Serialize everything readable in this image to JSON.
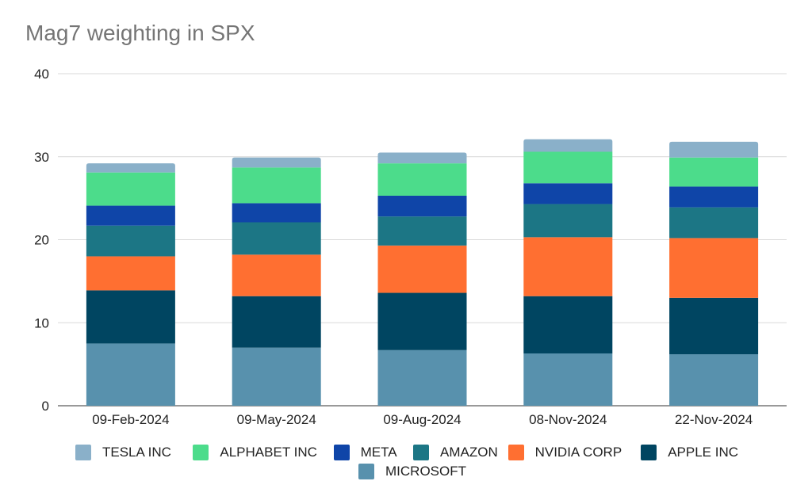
{
  "chart_data": {
    "type": "bar",
    "stacked": true,
    "title": "Mag7 weighting in SPX",
    "xlabel": "",
    "ylabel": "",
    "ylim": [
      0,
      40
    ],
    "yticks": [
      0,
      10,
      20,
      30,
      40
    ],
    "grid": true,
    "legend_position": "bottom",
    "categories": [
      "09-Feb-2024",
      "09-May-2024",
      "09-Aug-2024",
      "08-Nov-2024",
      "22-Nov-2024"
    ],
    "series": [
      {
        "name": "MICROSOFT",
        "color": "#5891AD",
        "values": [
          7.5,
          7.0,
          6.7,
          6.3,
          6.2
        ]
      },
      {
        "name": "APPLE INC",
        "color": "#004561",
        "values": [
          6.4,
          6.2,
          6.9,
          6.9,
          6.8
        ]
      },
      {
        "name": "NVIDIA CORP",
        "color": "#FF6F31",
        "values": [
          4.1,
          5.0,
          5.7,
          7.1,
          7.2
        ]
      },
      {
        "name": "AMAZON",
        "color": "#1C7685",
        "values": [
          3.7,
          3.9,
          3.5,
          4.0,
          3.7
        ]
      },
      {
        "name": "META",
        "color": "#0F45A8",
        "values": [
          2.4,
          2.3,
          2.5,
          2.5,
          2.5
        ]
      },
      {
        "name": "ALPHABET INC",
        "color": "#4CDC8B",
        "values": [
          4.0,
          4.3,
          3.9,
          3.8,
          3.5
        ]
      },
      {
        "name": "TESLA INC",
        "color": "#8AB0C9",
        "values": [
          1.1,
          1.2,
          1.3,
          1.5,
          1.9
        ]
      }
    ],
    "legend_order": [
      "TESLA INC",
      "ALPHABET INC",
      "META",
      "AMAZON",
      "NVIDIA CORP",
      "APPLE INC",
      "MICROSOFT"
    ]
  }
}
